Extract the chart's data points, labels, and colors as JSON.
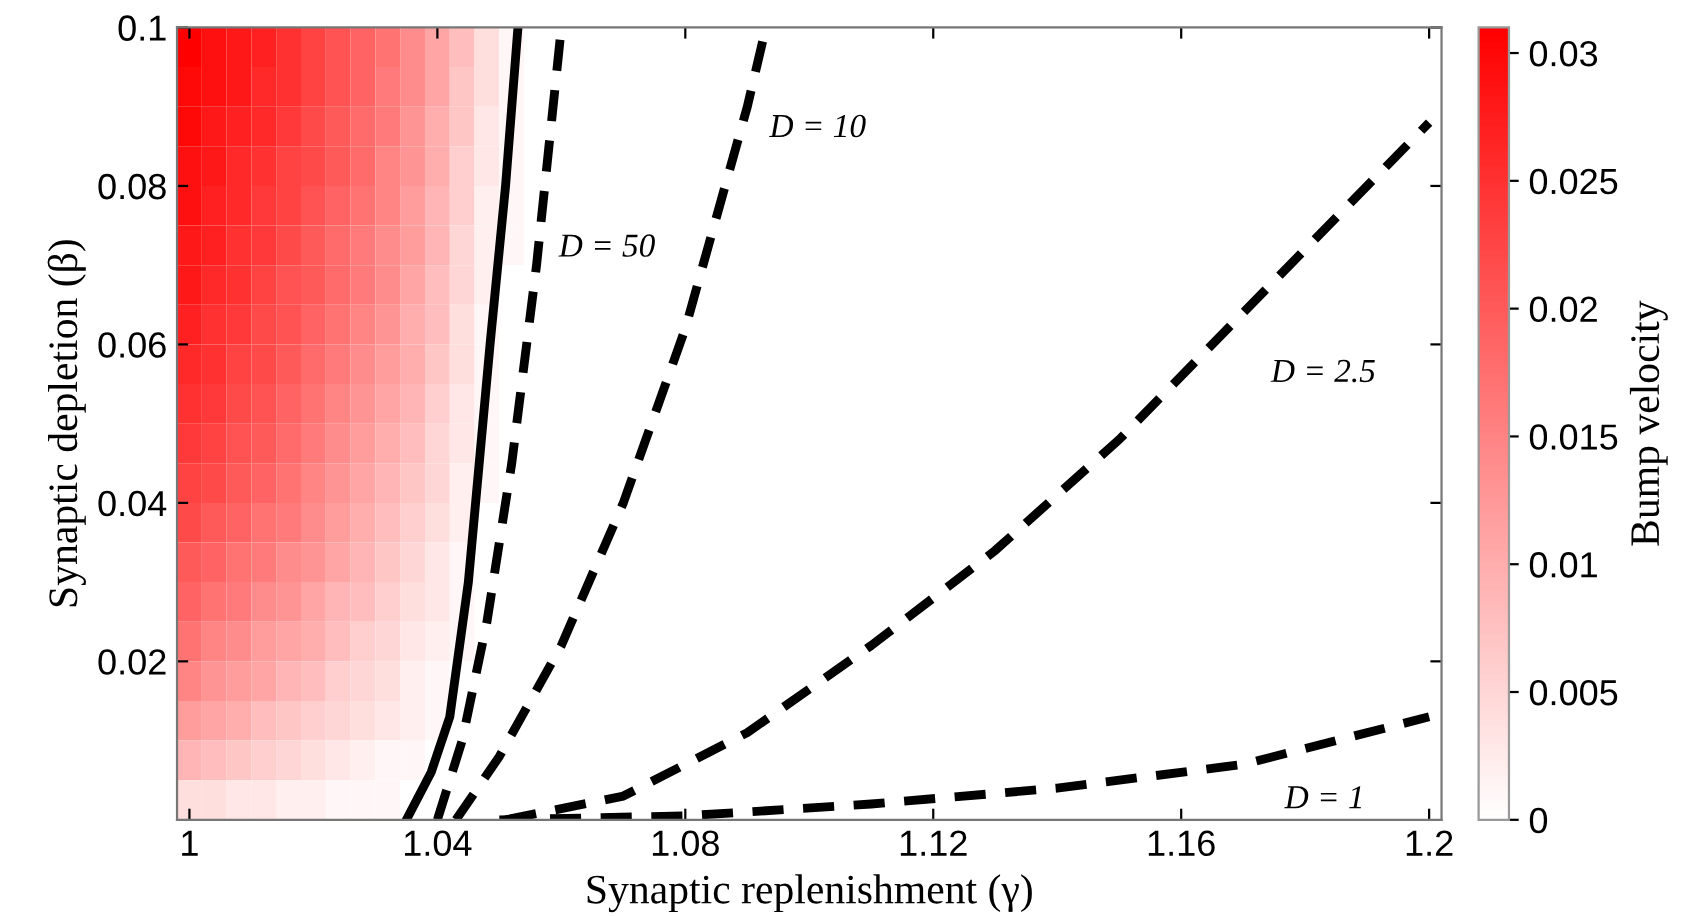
{
  "chart_data": {
    "type": "heatmap",
    "xlabel": "Synaptic replenishment (γ)",
    "ylabel": "Synaptic depletion (β)",
    "clabel": "Bump velocity",
    "x": [
      1.0,
      1.004,
      1.008,
      1.012,
      1.016,
      1.02,
      1.024,
      1.028,
      1.032,
      1.036,
      1.04,
      1.044,
      1.048,
      1.052
    ],
    "y": [
      0.0975,
      0.0925,
      0.0875,
      0.0825,
      0.0775,
      0.0725,
      0.0675,
      0.0625,
      0.0575,
      0.0525,
      0.0475,
      0.0425,
      0.0375,
      0.0325,
      0.0275,
      0.0225,
      0.0175,
      0.0125,
      0.0075,
      0.0025
    ],
    "cells": [
      [
        0.031,
        0.029,
        0.028,
        0.027,
        0.025,
        0.023,
        0.021,
        0.019,
        0.017,
        0.014,
        0.011,
        0.008,
        0.004,
        0.001
      ],
      [
        0.03,
        0.029,
        0.028,
        0.026,
        0.025,
        0.023,
        0.021,
        0.019,
        0.016,
        0.014,
        0.011,
        0.007,
        0.004,
        0.001
      ],
      [
        0.03,
        0.028,
        0.027,
        0.026,
        0.024,
        0.022,
        0.02,
        0.018,
        0.016,
        0.013,
        0.01,
        0.007,
        0.003,
        0.001
      ],
      [
        0.029,
        0.028,
        0.026,
        0.025,
        0.023,
        0.022,
        0.02,
        0.018,
        0.015,
        0.013,
        0.01,
        0.006,
        0.003,
        0.001
      ],
      [
        0.029,
        0.027,
        0.026,
        0.024,
        0.023,
        0.021,
        0.019,
        0.017,
        0.015,
        0.012,
        0.009,
        0.006,
        0.002,
        0.001
      ],
      [
        0.028,
        0.027,
        0.025,
        0.024,
        0.022,
        0.02,
        0.018,
        0.016,
        0.014,
        0.012,
        0.009,
        0.005,
        0.002,
        0.001
      ],
      [
        0.028,
        0.026,
        0.025,
        0.023,
        0.021,
        0.02,
        0.018,
        0.016,
        0.014,
        0.011,
        0.008,
        0.005,
        0.002,
        0
      ],
      [
        0.027,
        0.025,
        0.024,
        0.022,
        0.021,
        0.019,
        0.017,
        0.015,
        0.013,
        0.01,
        0.008,
        0.004,
        0.001,
        0
      ],
      [
        0.026,
        0.025,
        0.023,
        0.022,
        0.02,
        0.018,
        0.016,
        0.014,
        0.012,
        0.01,
        0.007,
        0.004,
        0.001,
        0
      ],
      [
        0.025,
        0.024,
        0.022,
        0.021,
        0.019,
        0.017,
        0.015,
        0.013,
        0.011,
        0.009,
        0.006,
        0.003,
        0.001,
        0
      ],
      [
        0.024,
        0.023,
        0.021,
        0.02,
        0.018,
        0.016,
        0.014,
        0.012,
        0.01,
        0.008,
        0.005,
        0.003,
        0.001,
        0
      ],
      [
        0.023,
        0.022,
        0.02,
        0.019,
        0.017,
        0.015,
        0.013,
        0.011,
        0.009,
        0.007,
        0.005,
        0.002,
        0.001,
        0
      ],
      [
        0.022,
        0.02,
        0.019,
        0.017,
        0.016,
        0.014,
        0.012,
        0.01,
        0.008,
        0.006,
        0.004,
        0.002,
        0,
        0
      ],
      [
        0.02,
        0.019,
        0.017,
        0.016,
        0.014,
        0.013,
        0.011,
        0.009,
        0.007,
        0.005,
        0.003,
        0.001,
        0,
        0
      ],
      [
        0.019,
        0.017,
        0.016,
        0.014,
        0.013,
        0.011,
        0.009,
        0.008,
        0.006,
        0.004,
        0.003,
        0.001,
        0,
        0
      ],
      [
        0.017,
        0.015,
        0.014,
        0.012,
        0.011,
        0.01,
        0.008,
        0.006,
        0.005,
        0.003,
        0.002,
        0.001,
        0,
        0
      ],
      [
        0.015,
        0.013,
        0.012,
        0.011,
        0.009,
        0.008,
        0.006,
        0.005,
        0.004,
        0.002,
        0.001,
        0,
        0,
        0
      ],
      [
        0.012,
        0.011,
        0.01,
        0.008,
        0.007,
        0.006,
        0.005,
        0.004,
        0.003,
        0.002,
        0.001,
        0,
        0,
        0
      ],
      [
        0.009,
        0.008,
        0.007,
        0.006,
        0.005,
        0.004,
        0.003,
        0.002,
        0.001,
        0.001,
        0,
        0,
        0,
        0
      ],
      [
        0.004,
        0.004,
        0.003,
        0.003,
        0.002,
        0.002,
        0.001,
        0.001,
        0.001,
        0,
        0,
        0,
        0,
        0
      ]
    ],
    "clim": [
      0,
      0.031
    ],
    "cticks": [
      0,
      0.005,
      0.01,
      0.015,
      0.02,
      0.025,
      0.03
    ],
    "series": [
      {
        "type": "line",
        "color": "#000000",
        "line_style": "solid",
        "x": [
          1.035,
          1.039,
          1.042,
          1.045,
          1.0485,
          1.051,
          1.053
        ],
        "values": [
          0,
          0.006,
          0.013,
          0.03,
          0.06,
          0.08,
          0.1
        ]
      },
      {
        "type": "line",
        "name": "D = 50",
        "color": "#000000",
        "line_style": "dashed",
        "x": [
          1.04,
          1.044,
          1.048,
          1.052,
          1.056,
          1.06
        ],
        "values": [
          0,
          0.01,
          0.025,
          0.045,
          0.07,
          0.1
        ]
      },
      {
        "type": "line",
        "name": "D = 10",
        "color": "#000000",
        "line_style": "dashed",
        "x": [
          1.043,
          1.05,
          1.06,
          1.07,
          1.08,
          1.09,
          1.093
        ],
        "values": [
          0,
          0.008,
          0.022,
          0.04,
          0.062,
          0.09,
          0.1
        ]
      },
      {
        "type": "line",
        "name": "D = 2.5",
        "color": "#000000",
        "line_style": "dashed",
        "x": [
          1.051,
          1.07,
          1.09,
          1.11,
          1.13,
          1.15,
          1.17,
          1.19,
          1.2
        ],
        "values": [
          0,
          0.003,
          0.011,
          0.022,
          0.034,
          0.048,
          0.064,
          0.08,
          0.088
        ]
      },
      {
        "type": "line",
        "name": "D = 1",
        "color": "#000000",
        "line_style": "dashed",
        "x": [
          1.05,
          1.08,
          1.11,
          1.14,
          1.17,
          1.2
        ],
        "values": [
          0,
          0.0005,
          0.002,
          0.004,
          0.007,
          0.013
        ]
      }
    ],
    "xlim": [
      0.998,
      1.202
    ],
    "ylim": [
      0,
      0.1
    ],
    "xticks": [
      1,
      1.04,
      1.08,
      1.12,
      1.16,
      1.2
    ],
    "yticks": [
      0.02,
      0.04,
      0.06,
      0.08,
      0.1
    ],
    "grid": false
  }
}
